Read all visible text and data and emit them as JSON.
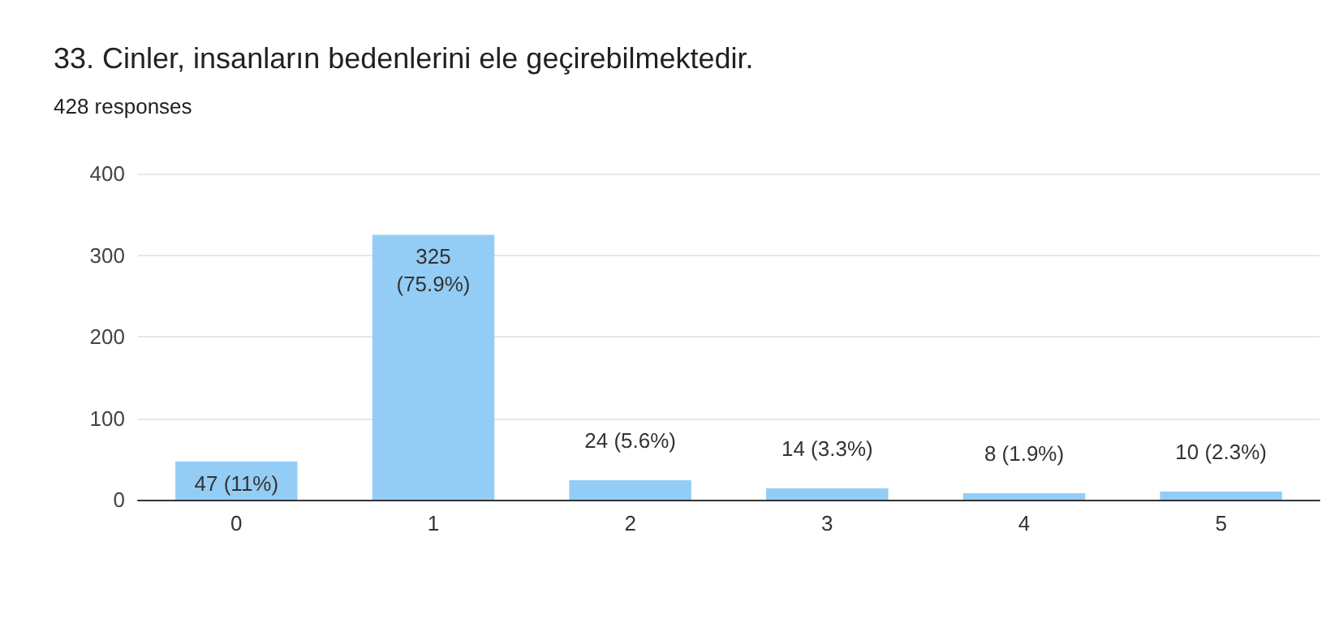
{
  "chart_data": {
    "type": "bar",
    "title": "33. Cinler, insanların bedenlerini ele geçirebilmektedir.",
    "subtitle": "428 responses",
    "categories": [
      "0",
      "1",
      "2",
      "3",
      "4",
      "5"
    ],
    "values": [
      47,
      325,
      24,
      14,
      8,
      10
    ],
    "value_labels": [
      "47 (11%)",
      "325\n(75.9%)",
      "24 (5.6%)",
      "14 (3.3%)",
      "8 (1.9%)",
      "10 (2.3%)"
    ],
    "color": "#93cdf5",
    "ylim": [
      0,
      400
    ],
    "yticks": [
      0,
      100,
      200,
      300,
      400
    ],
    "grid": "y"
  }
}
